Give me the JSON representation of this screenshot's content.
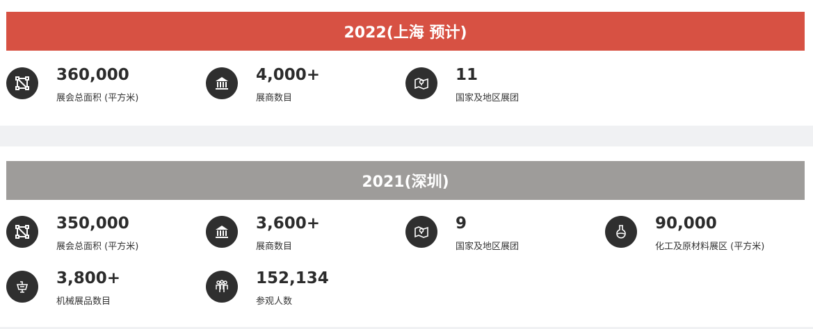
{
  "colors": {
    "highlight_bar": "#d75143",
    "past_bar": "#9e9c9a",
    "icon_bg": "#2f2f2f"
  },
  "sections": [
    {
      "title": "2022(上海 预计)",
      "stats": [
        {
          "value": "360,000",
          "label": "展会总面积 (平方米)",
          "icon": "area-icon"
        },
        {
          "value": "4,000+",
          "label": "展商数目",
          "icon": "building-icon"
        },
        {
          "value": "11",
          "label": "国家及地区展团",
          "icon": "map-icon"
        }
      ]
    },
    {
      "title": "2021(深圳)",
      "stats": [
        {
          "value": "350,000",
          "label": "展会总面积 (平方米)",
          "icon": "area-icon"
        },
        {
          "value": "3,600+",
          "label": "展商数目",
          "icon": "building-icon"
        },
        {
          "value": "9",
          "label": "国家及地区展团",
          "icon": "map-icon"
        },
        {
          "value": "90,000",
          "label": "化工及原材料展区 (平方米)",
          "icon": "flask-icon"
        },
        {
          "value": "3,800+",
          "label": "机械展品数目",
          "icon": "machine-icon"
        },
        {
          "value": "152,134",
          "label": "参观人数",
          "icon": "people-icon"
        }
      ]
    }
  ]
}
